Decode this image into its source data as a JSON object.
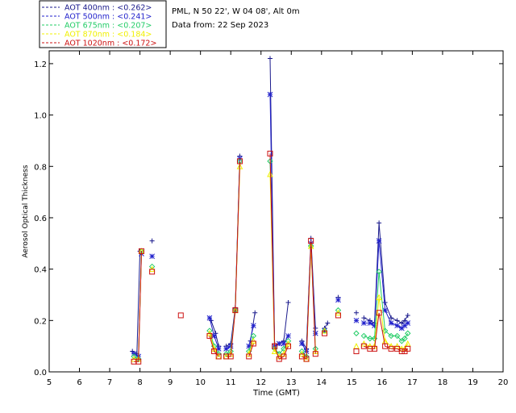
{
  "header": {
    "station": "PML, N 50 22', W 04 08', Alt 0m",
    "date": "Data from: 22 Sep 2023"
  },
  "chart_data": {
    "type": "line",
    "xlabel": "Time (GMT)",
    "ylabel": "Aerosol Optical Thickness",
    "xlim": [
      5,
      20
    ],
    "ylim": [
      0,
      1.25
    ],
    "xticks": [
      "5",
      "6",
      "7",
      "8",
      "9",
      "10",
      "11",
      "12",
      "13",
      "14",
      "15",
      "16",
      "17",
      "18",
      "19",
      "20"
    ],
    "yticks": [
      "0.0",
      "0.2",
      "0.4",
      "0.6",
      "0.8",
      "1.0",
      "1.2"
    ],
    "grid": false,
    "legend_position": "top-left",
    "series": [
      {
        "name": "AOT  400nm : <0.262>",
        "color": "#1a1a8c",
        "marker": "plus",
        "segments": [
          [
            [
              7.75,
              0.08
            ],
            [
              7.9,
              0.07
            ],
            [
              8.0,
              0.47
            ]
          ],
          [
            [
              8.4,
              0.51
            ]
          ],
          [
            [
              10.35,
              0.2
            ],
            [
              10.5,
              0.15
            ],
            [
              10.6,
              0.1
            ]
          ],
          [
            [
              10.85,
              0.1
            ],
            [
              11.0,
              0.11
            ],
            [
              11.15,
              0.25
            ],
            [
              11.3,
              0.84
            ]
          ],
          [
            [
              11.65,
              0.12
            ],
            [
              11.8,
              0.23
            ]
          ],
          [
            [
              12.3,
              1.22
            ],
            [
              12.45,
              0.11
            ],
            [
              12.6,
              0.11
            ],
            [
              12.75,
              0.12
            ],
            [
              12.9,
              0.27
            ]
          ],
          [
            [
              13.35,
              0.12
            ],
            [
              13.5,
              0.09
            ],
            [
              13.65,
              0.52
            ],
            [
              13.8,
              0.17
            ]
          ],
          [
            [
              14.1,
              0.17
            ],
            [
              14.2,
              0.19
            ]
          ],
          [
            [
              14.55,
              0.29
            ]
          ],
          [
            [
              15.15,
              0.23
            ]
          ],
          [
            [
              15.4,
              0.21
            ],
            [
              15.6,
              0.2
            ],
            [
              15.75,
              0.19
            ],
            [
              15.9,
              0.58
            ],
            [
              16.1,
              0.27
            ],
            [
              16.3,
              0.21
            ],
            [
              16.5,
              0.2
            ],
            [
              16.65,
              0.19
            ],
            [
              16.75,
              0.2
            ],
            [
              16.85,
              0.22
            ]
          ]
        ]
      },
      {
        "name": "AOT  500nm : <0.241>",
        "color": "#2222cc",
        "marker": "asterisk",
        "segments": [
          [
            [
              7.8,
              0.07
            ],
            [
              7.95,
              0.06
            ],
            [
              8.05,
              0.46
            ]
          ],
          [
            [
              8.4,
              0.45
            ]
          ],
          [
            [
              10.3,
              0.21
            ],
            [
              10.45,
              0.14
            ],
            [
              10.6,
              0.09
            ]
          ],
          [
            [
              10.85,
              0.09
            ],
            [
              11.0,
              0.1
            ],
            [
              11.15,
              0.24
            ],
            [
              11.3,
              0.83
            ]
          ],
          [
            [
              11.6,
              0.1
            ],
            [
              11.75,
              0.18
            ]
          ],
          [
            [
              12.3,
              1.08
            ],
            [
              12.45,
              0.1
            ],
            [
              12.6,
              0.11
            ],
            [
              12.75,
              0.11
            ],
            [
              12.9,
              0.14
            ]
          ],
          [
            [
              13.35,
              0.11
            ],
            [
              13.5,
              0.08
            ],
            [
              13.65,
              0.5
            ],
            [
              13.8,
              0.15
            ]
          ],
          [
            [
              14.1,
              0.16
            ]
          ],
          [
            [
              14.55,
              0.28
            ]
          ],
          [
            [
              15.15,
              0.2
            ]
          ],
          [
            [
              15.4,
              0.19
            ],
            [
              15.6,
              0.19
            ],
            [
              15.75,
              0.18
            ],
            [
              15.9,
              0.51
            ],
            [
              16.1,
              0.24
            ],
            [
              16.3,
              0.19
            ],
            [
              16.5,
              0.18
            ],
            [
              16.65,
              0.17
            ],
            [
              16.75,
              0.18
            ],
            [
              16.85,
              0.19
            ]
          ]
        ]
      },
      {
        "name": "AOT  675nm : <0.207>",
        "color": "#22cc66",
        "marker": "diamond",
        "segments": [
          [
            [
              7.8,
              0.06
            ],
            [
              7.95,
              0.05
            ],
            [
              8.05,
              0.47
            ]
          ],
          [
            [
              8.4,
              0.41
            ]
          ],
          [
            [
              10.3,
              0.16
            ],
            [
              10.45,
              0.1
            ],
            [
              10.6,
              0.07
            ]
          ],
          [
            [
              10.85,
              0.07
            ],
            [
              11.0,
              0.08
            ],
            [
              11.15,
              0.24
            ],
            [
              11.3,
              0.82
            ]
          ],
          [
            [
              11.6,
              0.08
            ],
            [
              11.75,
              0.14
            ]
          ],
          [
            [
              12.3,
              0.82
            ],
            [
              12.45,
              0.09
            ],
            [
              12.6,
              0.07
            ],
            [
              12.75,
              0.09
            ],
            [
              12.9,
              0.12
            ]
          ],
          [
            [
              13.35,
              0.08
            ],
            [
              13.5,
              0.06
            ],
            [
              13.65,
              0.49
            ],
            [
              13.8,
              0.09
            ]
          ],
          [
            [
              14.1,
              0.16
            ]
          ],
          [
            [
              14.55,
              0.24
            ]
          ],
          [
            [
              15.15,
              0.15
            ]
          ],
          [
            [
              15.4,
              0.14
            ],
            [
              15.6,
              0.13
            ],
            [
              15.75,
              0.13
            ],
            [
              15.9,
              0.39
            ],
            [
              16.1,
              0.16
            ],
            [
              16.3,
              0.14
            ],
            [
              16.5,
              0.14
            ],
            [
              16.65,
              0.12
            ],
            [
              16.75,
              0.13
            ],
            [
              16.85,
              0.15
            ]
          ]
        ]
      },
      {
        "name": "AOT  870nm : <0.184>",
        "color": "#f0f000",
        "marker": "triangle",
        "segments": [
          [
            [
              7.8,
              0.05
            ],
            [
              7.95,
              0.05
            ],
            [
              8.05,
              0.47
            ]
          ],
          [
            [
              8.4,
              0.4
            ]
          ],
          [
            [
              10.3,
              0.15
            ],
            [
              10.45,
              0.09
            ],
            [
              10.6,
              0.06
            ]
          ],
          [
            [
              10.85,
              0.06
            ],
            [
              11.0,
              0.07
            ],
            [
              11.15,
              0.24
            ],
            [
              11.3,
              0.8
            ]
          ],
          [
            [
              11.6,
              0.07
            ],
            [
              11.75,
              0.12
            ]
          ],
          [
            [
              12.3,
              0.77
            ],
            [
              12.45,
              0.08
            ],
            [
              12.6,
              0.06
            ],
            [
              12.75,
              0.07
            ],
            [
              12.9,
              0.11
            ]
          ],
          [
            [
              13.35,
              0.07
            ],
            [
              13.5,
              0.05
            ],
            [
              13.65,
              0.49
            ],
            [
              13.8,
              0.08
            ]
          ],
          [
            [
              14.1,
              0.16
            ]
          ],
          [
            [
              14.55,
              0.23
            ]
          ],
          [
            [
              15.15,
              0.1
            ]
          ],
          [
            [
              15.4,
              0.11
            ],
            [
              15.6,
              0.1
            ],
            [
              15.75,
              0.1
            ],
            [
              15.9,
              0.29
            ],
            [
              16.1,
              0.12
            ],
            [
              16.3,
              0.1
            ],
            [
              16.5,
              0.1
            ],
            [
              16.65,
              0.09
            ],
            [
              16.75,
              0.09
            ],
            [
              16.85,
              0.11
            ]
          ]
        ]
      },
      {
        "name": "AOT 1020nm : <0.172>",
        "color": "#cc1111",
        "marker": "square",
        "segments": [
          [
            [
              7.8,
              0.04
            ],
            [
              7.95,
              0.04
            ],
            [
              8.05,
              0.47
            ]
          ],
          [
            [
              8.4,
              0.39
            ]
          ],
          [
            [
              9.35,
              0.22
            ]
          ],
          [
            [
              10.3,
              0.14
            ],
            [
              10.45,
              0.08
            ],
            [
              10.6,
              0.06
            ]
          ],
          [
            [
              10.85,
              0.06
            ],
            [
              11.0,
              0.06
            ],
            [
              11.15,
              0.24
            ],
            [
              11.3,
              0.82
            ]
          ],
          [
            [
              11.6,
              0.06
            ],
            [
              11.75,
              0.11
            ]
          ],
          [
            [
              12.3,
              0.85
            ],
            [
              12.45,
              0.1
            ],
            [
              12.6,
              0.05
            ],
            [
              12.75,
              0.06
            ],
            [
              12.9,
              0.1
            ]
          ],
          [
            [
              13.35,
              0.06
            ],
            [
              13.5,
              0.05
            ],
            [
              13.65,
              0.51
            ],
            [
              13.8,
              0.07
            ]
          ],
          [
            [
              14.1,
              0.15
            ]
          ],
          [
            [
              14.55,
              0.22
            ]
          ],
          [
            [
              15.15,
              0.08
            ]
          ],
          [
            [
              15.4,
              0.1
            ],
            [
              15.6,
              0.09
            ],
            [
              15.75,
              0.09
            ],
            [
              15.9,
              0.23
            ],
            [
              16.1,
              0.1
            ],
            [
              16.3,
              0.09
            ],
            [
              16.5,
              0.09
            ],
            [
              16.65,
              0.08
            ],
            [
              16.75,
              0.08
            ],
            [
              16.85,
              0.09
            ]
          ]
        ]
      }
    ]
  }
}
